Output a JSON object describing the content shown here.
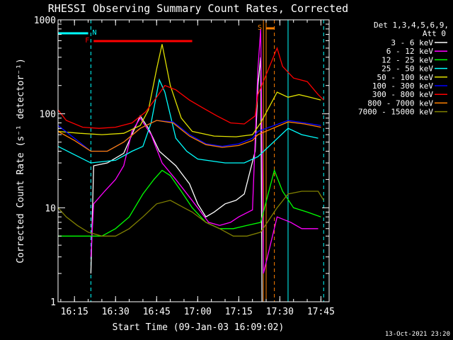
{
  "chart_data": {
    "type": "line",
    "title": "RHESSI Observing Summary Count Rates, Corrected",
    "xlabel": "Start Time (09-Jan-03 16:09:02)",
    "ylabel": "Corrected Count Rate (s⁻¹ detector⁻¹)",
    "y_scale": "log",
    "ylim": [
      1,
      1000
    ],
    "xlim": [
      "16:09",
      "17:48"
    ],
    "x_ticks": [
      "16:15",
      "16:30",
      "16:45",
      "17:00",
      "17:15",
      "17:30",
      "17:45"
    ],
    "y_ticks": [
      "1",
      "10",
      "100",
      "1000"
    ],
    "legend_header": [
      "Det 1,3,4,5,6,9,",
      "Att 0"
    ],
    "legend_position": "top-right",
    "footer_date": "13-Oct-2021 23:20",
    "flags": [
      {
        "label": "N",
        "color": "#00ffff",
        "start": "16:09",
        "end": "16:20"
      },
      {
        "label": "F",
        "color": "#ff0000",
        "start": "16:22",
        "end": "16:58"
      },
      {
        "label": "S",
        "color": "#ff8000",
        "start": "17:25",
        "end": "17:28"
      }
    ],
    "vlines": [
      {
        "t": "16:21",
        "color": "#00ffff",
        "dashed": true
      },
      {
        "t": "17:33",
        "color": "#00ffff",
        "dashed": false
      },
      {
        "t": "17:46",
        "color": "#00ffff",
        "dashed": true
      },
      {
        "t": "17:24",
        "color": "#ff8000",
        "dashed": false
      },
      {
        "t": "17:25",
        "color": "#ff8000",
        "dashed": false
      },
      {
        "t": "17:28",
        "color": "#ff8000",
        "dashed": true
      }
    ],
    "series": [
      {
        "name": "3 - 6 keV",
        "color": "#ffffff",
        "points": [
          [
            "16:21",
            2
          ],
          [
            "16:22",
            28
          ],
          [
            "16:27",
            30
          ],
          [
            "16:33",
            38
          ],
          [
            "16:39",
            95
          ],
          [
            "16:42",
            70
          ],
          [
            "16:46",
            40
          ],
          [
            "16:52",
            28
          ],
          [
            "16:57",
            18
          ],
          [
            "17:00",
            11
          ],
          [
            "17:03",
            8
          ],
          [
            "17:06",
            9
          ],
          [
            "17:10",
            11
          ],
          [
            "17:14",
            12
          ],
          [
            "17:17",
            14
          ],
          [
            "17:21",
            40
          ],
          [
            "17:22",
            200
          ],
          [
            "17:23",
            400
          ],
          [
            "17:23.5",
            1
          ]
        ]
      },
      {
        "name": "6 - 12 keV",
        "color": "#ff00ff",
        "points": [
          [
            "16:21",
            3
          ],
          [
            "16:22",
            11
          ],
          [
            "16:26",
            15
          ],
          [
            "16:30",
            20
          ],
          [
            "16:33",
            28
          ],
          [
            "16:36",
            65
          ],
          [
            "16:39",
            90
          ],
          [
            "16:43",
            60
          ],
          [
            "16:47",
            30
          ],
          [
            "16:52",
            20
          ],
          [
            "16:57",
            13
          ],
          [
            "17:00",
            10
          ],
          [
            "17:04",
            7
          ],
          [
            "17:08",
            6.5
          ],
          [
            "17:12",
            7
          ],
          [
            "17:15",
            8
          ],
          [
            "17:20",
            9.5
          ],
          [
            "17:22",
            300
          ],
          [
            "17:23",
            800
          ],
          [
            "17:24",
            2
          ],
          [
            "17:29",
            8
          ],
          [
            "17:34",
            7
          ],
          [
            "17:38",
            6
          ],
          [
            "17:44",
            6
          ]
        ]
      },
      {
        "name": "12 - 25 keV",
        "color": "#00ff00",
        "points": [
          [
            "16:09",
            5
          ],
          [
            "16:15",
            5
          ],
          [
            "16:20",
            5
          ],
          [
            "16:25",
            5
          ],
          [
            "16:30",
            6
          ],
          [
            "16:35",
            8
          ],
          [
            "16:40",
            14
          ],
          [
            "16:44",
            20
          ],
          [
            "16:47",
            25
          ],
          [
            "16:50",
            22
          ],
          [
            "16:54",
            15
          ],
          [
            "16:58",
            10
          ],
          [
            "17:03",
            7
          ],
          [
            "17:08",
            6
          ],
          [
            "17:13",
            6
          ],
          [
            "17:18",
            6.5
          ],
          [
            "17:23",
            7
          ],
          [
            "17:28",
            25
          ],
          [
            "17:31",
            15
          ],
          [
            "17:35",
            10
          ],
          [
            "17:40",
            9
          ],
          [
            "17:45",
            8
          ]
        ]
      },
      {
        "name": "25 - 50 keV",
        "color": "#00ffff",
        "points": [
          [
            "16:09",
            45
          ],
          [
            "16:14",
            38
          ],
          [
            "16:21",
            30
          ],
          [
            "16:30",
            32
          ],
          [
            "16:36",
            40
          ],
          [
            "16:40",
            45
          ],
          [
            "16:43",
            80
          ],
          [
            "16:46",
            230
          ],
          [
            "16:48",
            170
          ],
          [
            "16:52",
            55
          ],
          [
            "16:56",
            40
          ],
          [
            "17:00",
            33
          ],
          [
            "17:10",
            30
          ],
          [
            "17:17",
            30
          ],
          [
            "17:22",
            35
          ],
          [
            "17:33",
            70
          ],
          [
            "17:38",
            60
          ],
          [
            "17:44",
            55
          ]
        ]
      },
      {
        "name": "50 - 100 keV",
        "color": "#e0e000",
        "points": [
          [
            "16:09",
            65
          ],
          [
            "16:17",
            62
          ],
          [
            "16:25",
            60
          ],
          [
            "16:33",
            62
          ],
          [
            "16:39",
            75
          ],
          [
            "16:42",
            110
          ],
          [
            "16:45",
            300
          ],
          [
            "16:47",
            550
          ],
          [
            "16:50",
            200
          ],
          [
            "16:54",
            90
          ],
          [
            "16:58",
            65
          ],
          [
            "17:06",
            58
          ],
          [
            "17:14",
            57
          ],
          [
            "17:20",
            60
          ],
          [
            "17:23",
            80
          ],
          [
            "17:29",
            170
          ],
          [
            "17:33",
            150
          ],
          [
            "17:37",
            160
          ],
          [
            "17:41",
            150
          ],
          [
            "17:45",
            140
          ]
        ]
      },
      {
        "name": "100 - 300 keV",
        "color": "#0000ff",
        "points": [
          [
            "16:09",
            75
          ],
          [
            "16:15",
            55
          ],
          [
            "16:21",
            40
          ],
          [
            "16:27",
            40
          ],
          [
            "16:33",
            50
          ],
          [
            "16:39",
            70
          ],
          [
            "16:45",
            85
          ],
          [
            "16:51",
            82
          ],
          [
            "16:57",
            60
          ],
          [
            "17:03",
            48
          ],
          [
            "17:09",
            45
          ],
          [
            "17:15",
            48
          ],
          [
            "17:20",
            55
          ],
          [
            "17:22",
            65
          ],
          [
            "17:33",
            85
          ],
          [
            "17:39",
            80
          ],
          [
            "17:45",
            75
          ]
        ]
      },
      {
        "name": "300 - 800 keV",
        "color": "#ff0000",
        "points": [
          [
            "16:09",
            110
          ],
          [
            "16:12",
            85
          ],
          [
            "16:18",
            72
          ],
          [
            "16:24",
            70
          ],
          [
            "16:30",
            72
          ],
          [
            "16:36",
            80
          ],
          [
            "16:41",
            105
          ],
          [
            "16:45",
            150
          ],
          [
            "16:48",
            200
          ],
          [
            "16:52",
            180
          ],
          [
            "16:57",
            140
          ],
          [
            "17:02",
            115
          ],
          [
            "17:07",
            95
          ],
          [
            "17:12",
            80
          ],
          [
            "17:17",
            78
          ],
          [
            "17:21",
            95
          ],
          [
            "17:22",
            160
          ],
          [
            "17:29",
            500
          ],
          [
            "17:31",
            320
          ],
          [
            "17:35",
            240
          ],
          [
            "17:40",
            220
          ],
          [
            "17:44",
            160
          ],
          [
            "17:46",
            140
          ]
        ]
      },
      {
        "name": "800 - 7000 keV",
        "color": "#ff8000",
        "points": [
          [
            "16:09",
            65
          ],
          [
            "16:15",
            52
          ],
          [
            "16:21",
            40
          ],
          [
            "16:27",
            40
          ],
          [
            "16:33",
            50
          ],
          [
            "16:39",
            70
          ],
          [
            "16:45",
            85
          ],
          [
            "16:51",
            80
          ],
          [
            "16:57",
            58
          ],
          [
            "17:03",
            47
          ],
          [
            "17:09",
            44
          ],
          [
            "17:15",
            46
          ],
          [
            "17:20",
            52
          ],
          [
            "17:22",
            60
          ],
          [
            "17:33",
            82
          ],
          [
            "17:39",
            78
          ],
          [
            "17:45",
            72
          ]
        ]
      },
      {
        "name": "7000 - 15000 keV",
        "color": "#808000",
        "points": [
          [
            "16:09",
            10
          ],
          [
            "16:12",
            8
          ],
          [
            "16:16",
            6.5
          ],
          [
            "16:20",
            5.5
          ],
          [
            "16:25",
            5
          ],
          [
            "16:30",
            5
          ],
          [
            "16:35",
            6
          ],
          [
            "16:40",
            8
          ],
          [
            "16:45",
            11
          ],
          [
            "16:50",
            12
          ],
          [
            "16:55",
            10
          ],
          [
            "16:58",
            9
          ],
          [
            "17:03",
            7
          ],
          [
            "17:08",
            6
          ],
          [
            "17:13",
            5
          ],
          [
            "17:18",
            5
          ],
          [
            "17:23",
            5.5
          ],
          [
            "17:29",
            10
          ],
          [
            "17:33",
            14
          ],
          [
            "17:38",
            15
          ],
          [
            "17:44",
            15
          ],
          [
            "17:46",
            12
          ]
        ]
      }
    ]
  }
}
